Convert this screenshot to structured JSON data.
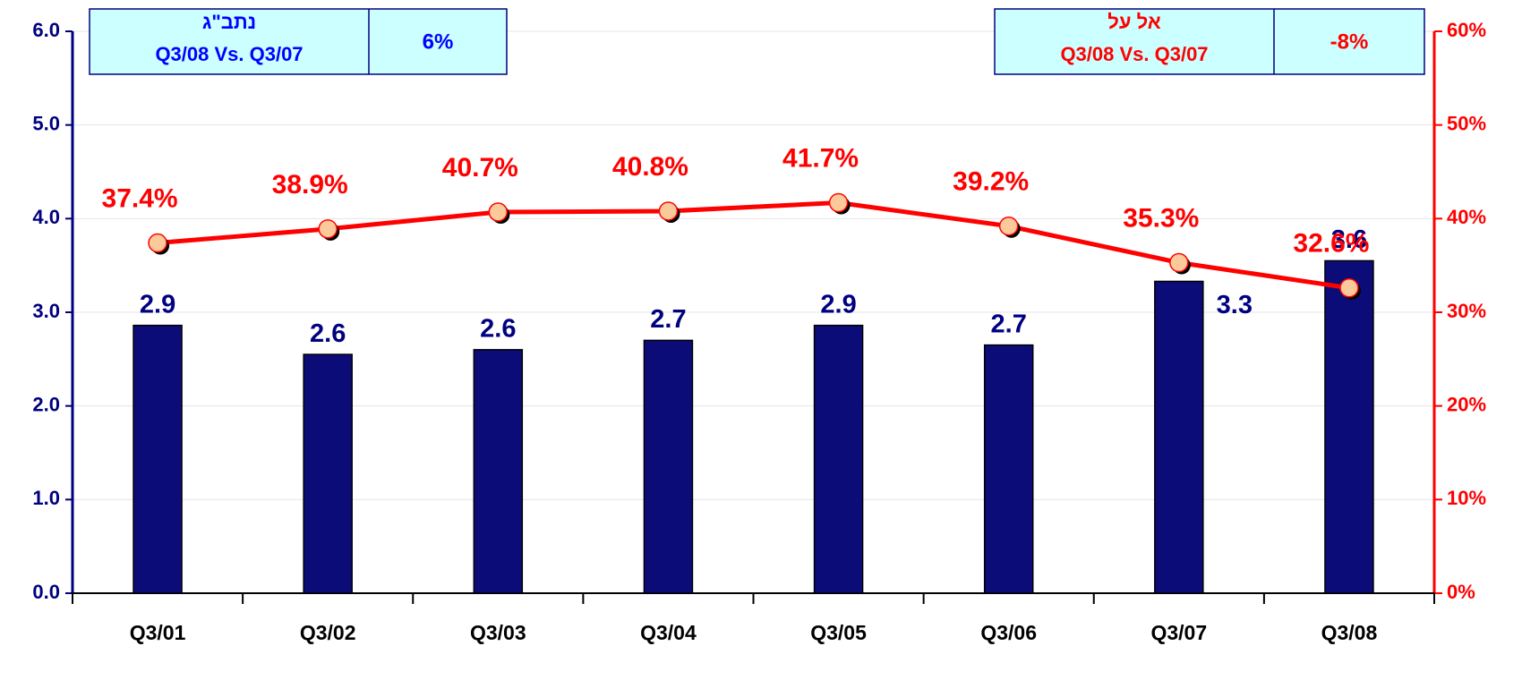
{
  "chart_data": {
    "type": "bar",
    "categories": [
      "Q3/01",
      "Q3/02",
      "Q3/03",
      "Q3/04",
      "Q3/05",
      "Q3/06",
      "Q3/07",
      "Q3/08"
    ],
    "series": [
      {
        "type": "bar",
        "color": "#0c0c78",
        "values": [
          2.86,
          2.55,
          2.6,
          2.7,
          2.86,
          2.65,
          3.33,
          3.55
        ],
        "value_labels": [
          "2.9",
          "2.6",
          "2.6",
          "2.7",
          "2.9",
          "2.7",
          "3.3",
          "3.6"
        ]
      },
      {
        "type": "line",
        "axis": "y2",
        "color": "#ff0000",
        "values": [
          37.4,
          38.9,
          40.7,
          40.8,
          41.7,
          39.2,
          35.3,
          32.6
        ],
        "value_labels": [
          "37.4%",
          "38.9%",
          "40.7%",
          "40.8%",
          "41.7%",
          "39.2%",
          "35.3%",
          "32.6%"
        ]
      }
    ],
    "ylim": [
      0,
      6
    ],
    "yticks": [
      {
        "value": 0,
        "label": "0.0"
      },
      {
        "value": 1,
        "label": "1.0"
      },
      {
        "value": 2,
        "label": "2.0"
      },
      {
        "value": 3,
        "label": "3.0"
      },
      {
        "value": 4,
        "label": "4.0"
      },
      {
        "value": 5,
        "label": "5.0"
      },
      {
        "value": 6,
        "label": "6.0"
      }
    ],
    "y2lim": [
      0,
      60
    ],
    "y2ticks": [
      {
        "value": 0,
        "label": "0%"
      },
      {
        "value": 10,
        "label": "10%"
      },
      {
        "value": 20,
        "label": "20%"
      },
      {
        "value": 30,
        "label": "30%"
      },
      {
        "value": 40,
        "label": "40%"
      },
      {
        "value": 50,
        "label": "50%"
      },
      {
        "value": 60,
        "label": "60%"
      }
    ],
    "grid": true,
    "annotations": [
      {
        "title": "נתב\"ג",
        "subtitle": "Q3/08 Vs. Q3/07",
        "value": "6%",
        "color": "#0000ff"
      },
      {
        "title": "אל על",
        "subtitle": "Q3/08 Vs. Q3/07",
        "value": "-8%",
        "color": "#ff0000"
      }
    ]
  }
}
